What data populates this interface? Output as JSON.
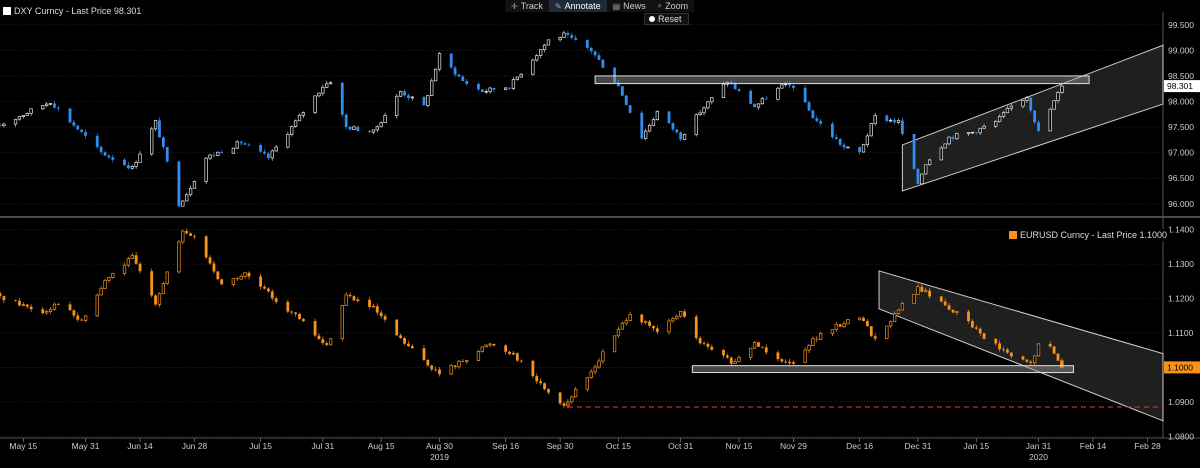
{
  "toolbar": {
    "items": [
      {
        "label": "Track",
        "icon": "crosshair-icon"
      },
      {
        "label": "Annotate",
        "icon": "pencil-icon"
      },
      {
        "label": "News",
        "icon": "news-icon"
      },
      {
        "label": "Zoom",
        "icon": "magnifier-icon"
      }
    ],
    "reset_label": "Reset"
  },
  "colors": {
    "background": "#000000",
    "dxy_down": "#2f8ef0",
    "dxy_up": "#ffffff",
    "eurusd": "#f7931a",
    "grid": "#3a3a3a",
    "target_line": "#ff3030"
  },
  "chart_data": [
    {
      "type": "candlestick",
      "panel": "top",
      "title": "DXY Curncy - Last Price 98.301",
      "last_price_label": "98.301",
      "ylim": [
        95.8,
        99.75
      ],
      "y_ticks": [
        "96.000",
        "96.500",
        "97.000",
        "97.500",
        "98.000",
        "98.500",
        "99.000",
        "99.500"
      ],
      "key_points": [
        {
          "date": "2019-05-08",
          "close": 97.5
        },
        {
          "date": "2019-05-22",
          "close": 98.0
        },
        {
          "date": "2019-06-04",
          "close": 97.0
        },
        {
          "date": "2019-06-12",
          "close": 96.7
        },
        {
          "date": "2019-06-18",
          "close": 97.6
        },
        {
          "date": "2019-06-24",
          "close": 96.0
        },
        {
          "date": "2019-06-26",
          "close": 96.2
        },
        {
          "date": "2019-07-01",
          "close": 96.9
        },
        {
          "date": "2019-07-10",
          "close": 97.2
        },
        {
          "date": "2019-07-17",
          "close": 96.9
        },
        {
          "date": "2019-07-31",
          "close": 98.3
        },
        {
          "date": "2019-08-02",
          "close": 98.4
        },
        {
          "date": "2019-08-06",
          "close": 97.5
        },
        {
          "date": "2019-08-13",
          "close": 97.4
        },
        {
          "date": "2019-08-20",
          "close": 98.2
        },
        {
          "date": "2019-08-26",
          "close": 97.9
        },
        {
          "date": "2019-08-30",
          "close": 98.9
        },
        {
          "date": "2019-09-05",
          "close": 98.4
        },
        {
          "date": "2019-09-10",
          "close": 98.2
        },
        {
          "date": "2019-09-17",
          "close": 98.3
        },
        {
          "date": "2019-09-27",
          "close": 99.2
        },
        {
          "date": "2019-10-01",
          "close": 99.3
        },
        {
          "date": "2019-10-08",
          "close": 99.0
        },
        {
          "date": "2019-10-15",
          "close": 98.3
        },
        {
          "date": "2019-10-21",
          "close": 97.3
        },
        {
          "date": "2019-10-25",
          "close": 97.8
        },
        {
          "date": "2019-10-31",
          "close": 97.3
        },
        {
          "date": "2019-11-05",
          "close": 97.8
        },
        {
          "date": "2019-11-12",
          "close": 98.4
        },
        {
          "date": "2019-11-19",
          "close": 97.9
        },
        {
          "date": "2019-11-26",
          "close": 98.3
        },
        {
          "date": "2019-11-29",
          "close": 98.3
        },
        {
          "date": "2019-12-04",
          "close": 97.7
        },
        {
          "date": "2019-12-12",
          "close": 97.1
        },
        {
          "date": "2019-12-16",
          "close": 97.0
        },
        {
          "date": "2019-12-20",
          "close": 97.7
        },
        {
          "date": "2019-12-26",
          "close": 97.6
        },
        {
          "date": "2019-12-31",
          "close": 96.4
        },
        {
          "date": "2020-01-02",
          "close": 96.8
        },
        {
          "date": "2020-01-08",
          "close": 97.3
        },
        {
          "date": "2020-01-14",
          "close": 97.4
        },
        {
          "date": "2020-01-20",
          "close": 97.6
        },
        {
          "date": "2020-01-24",
          "close": 97.9
        },
        {
          "date": "2020-01-28",
          "close": 98.1
        },
        {
          "date": "2020-01-31",
          "close": 97.4
        },
        {
          "date": "2020-02-04",
          "close": 98.0
        },
        {
          "date": "2020-02-06",
          "close": 98.301
        }
      ],
      "annotations": [
        {
          "type": "horizontal-zone",
          "from": "2019-10-09",
          "to": "2020-02-13",
          "ymin": 98.35,
          "ymax": 98.5
        },
        {
          "type": "channel",
          "from": "2019-12-27",
          "to": "2020-03-03",
          "lower": [
            96.25,
            97.95
          ],
          "upper": [
            97.15,
            99.1
          ]
        }
      ]
    },
    {
      "type": "candlestick",
      "panel": "bottom",
      "title": "EURUSD Curncy - Last Price 1.1000",
      "last_price_label": "1.1000",
      "ylim": [
        1.0795,
        1.1425
      ],
      "y_ticks": [
        "1.0800",
        "1.0900",
        "1.1000",
        "1.1100",
        "1.1200",
        "1.1300",
        "1.1400"
      ],
      "key_points": [
        {
          "date": "2019-05-08",
          "close": 1.121
        },
        {
          "date": "2019-05-20",
          "close": 1.116
        },
        {
          "date": "2019-05-24",
          "close": 1.119
        },
        {
          "date": "2019-05-30",
          "close": 1.113
        },
        {
          "date": "2019-06-05",
          "close": 1.125
        },
        {
          "date": "2019-06-12",
          "close": 1.132
        },
        {
          "date": "2019-06-18",
          "close": 1.119
        },
        {
          "date": "2019-06-25",
          "close": 1.139
        },
        {
          "date": "2019-06-28",
          "close": 1.138
        },
        {
          "date": "2019-07-05",
          "close": 1.124
        },
        {
          "date": "2019-07-11",
          "close": 1.127
        },
        {
          "date": "2019-07-25",
          "close": 1.114
        },
        {
          "date": "2019-08-01",
          "close": 1.106
        },
        {
          "date": "2019-08-06",
          "close": 1.121
        },
        {
          "date": "2019-08-13",
          "close": 1.117
        },
        {
          "date": "2019-08-20",
          "close": 1.108
        },
        {
          "date": "2019-08-30",
          "close": 1.098
        },
        {
          "date": "2019-09-05",
          "close": 1.102
        },
        {
          "date": "2019-09-12",
          "close": 1.107
        },
        {
          "date": "2019-09-18",
          "close": 1.104
        },
        {
          "date": "2019-09-25",
          "close": 1.095
        },
        {
          "date": "2019-10-01",
          "close": 1.089
        },
        {
          "date": "2019-10-07",
          "close": 1.097
        },
        {
          "date": "2019-10-11",
          "close": 1.104
        },
        {
          "date": "2019-10-18",
          "close": 1.116
        },
        {
          "date": "2019-10-25",
          "close": 1.11
        },
        {
          "date": "2019-10-31",
          "close": 1.116
        },
        {
          "date": "2019-11-05",
          "close": 1.107
        },
        {
          "date": "2019-11-14",
          "close": 1.101
        },
        {
          "date": "2019-11-19",
          "close": 1.107
        },
        {
          "date": "2019-11-28",
          "close": 1.101
        },
        {
          "date": "2019-12-04",
          "close": 1.108
        },
        {
          "date": "2019-12-12",
          "close": 1.113
        },
        {
          "date": "2019-12-16",
          "close": 1.115
        },
        {
          "date": "2019-12-20",
          "close": 1.108
        },
        {
          "date": "2019-12-27",
          "close": 1.118
        },
        {
          "date": "2019-12-31",
          "close": 1.123
        },
        {
          "date": "2020-01-06",
          "close": 1.119
        },
        {
          "date": "2020-01-13",
          "close": 1.113
        },
        {
          "date": "2020-01-17",
          "close": 1.109
        },
        {
          "date": "2020-01-24",
          "close": 1.103
        },
        {
          "date": "2020-01-29",
          "close": 1.101
        },
        {
          "date": "2020-02-01",
          "close": 1.109
        },
        {
          "date": "2020-02-04",
          "close": 1.104
        },
        {
          "date": "2020-02-06",
          "close": 1.1
        }
      ],
      "annotations": [
        {
          "type": "horizontal-zone",
          "from": "2019-11-03",
          "to": "2020-02-09",
          "ymin": 1.0985,
          "ymax": 1.1005
        },
        {
          "type": "channel",
          "from": "2019-12-21",
          "to": "2020-03-03",
          "upper": [
            1.128,
            1.104
          ],
          "lower": [
            1.117,
            1.0845
          ]
        },
        {
          "type": "dashed-level",
          "from": "2019-10-02",
          "to": "2020-03-03",
          "value": 1.0885
        }
      ]
    }
  ],
  "x_axis": {
    "x_range": [
      "2019-05-09",
      "2020-03-03"
    ],
    "ticks": [
      {
        "date": "2019-05-15",
        "label": "May 15"
      },
      {
        "date": "2019-05-31",
        "label": "May 31"
      },
      {
        "date": "2019-06-14",
        "label": "Jun 14"
      },
      {
        "date": "2019-06-28",
        "label": "Jun 28"
      },
      {
        "date": "2019-07-15",
        "label": "Jul 15"
      },
      {
        "date": "2019-07-31",
        "label": "Jul 31"
      },
      {
        "date": "2019-08-15",
        "label": "Aug 15"
      },
      {
        "date": "2019-08-30",
        "label": "Aug 30"
      },
      {
        "date": "2019-09-16",
        "label": "Sep 16"
      },
      {
        "date": "2019-09-30",
        "label": "Sep 30"
      },
      {
        "date": "2019-10-15",
        "label": "Oct 15"
      },
      {
        "date": "2019-10-31",
        "label": "Oct 31"
      },
      {
        "date": "2019-11-15",
        "label": "Nov 15"
      },
      {
        "date": "2019-11-29",
        "label": "Nov 29"
      },
      {
        "date": "2019-12-16",
        "label": "Dec 16"
      },
      {
        "date": "2019-12-31",
        "label": "Dec 31"
      },
      {
        "date": "2020-01-15",
        "label": "Jan 15"
      },
      {
        "date": "2020-01-31",
        "label": "Jan 31"
      },
      {
        "date": "2020-02-14",
        "label": "Feb 14"
      },
      {
        "date": "2020-02-28",
        "label": "Feb 28"
      }
    ],
    "years": [
      {
        "date": "2019-08-30",
        "label": "2019"
      },
      {
        "date": "2020-01-31",
        "label": "2020"
      }
    ]
  }
}
